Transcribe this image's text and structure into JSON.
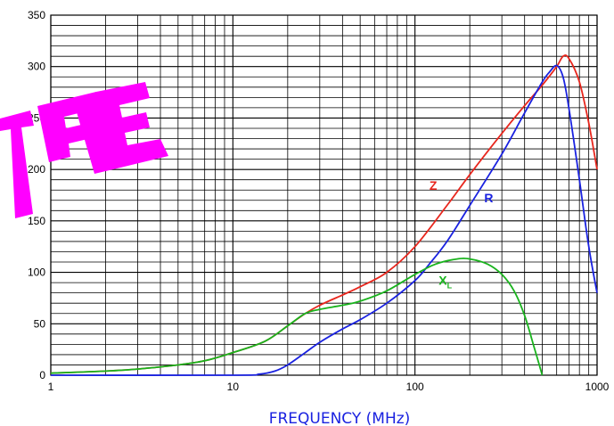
{
  "chart_data": {
    "type": "line",
    "title": "",
    "xlabel": "FREQUENCY (MHz)",
    "ylabel": "",
    "x_scale": "log",
    "xlim": [
      1,
      1000
    ],
    "ylim": [
      0,
      350
    ],
    "x_ticks": [
      "1",
      "10",
      "100",
      "1000"
    ],
    "y_ticks": [
      "0",
      "50",
      "100",
      "150",
      "200",
      "250",
      "300",
      "350"
    ],
    "grid": true,
    "legend": "inline labels",
    "series": [
      {
        "name": "Z",
        "color": "#e8261d",
        "label_at": [
          120,
          180
        ],
        "points": [
          [
            1,
            2
          ],
          [
            2,
            4
          ],
          [
            3,
            6
          ],
          [
            5,
            10
          ],
          [
            7,
            14
          ],
          [
            10,
            22
          ],
          [
            15,
            33
          ],
          [
            20,
            48
          ],
          [
            25,
            60
          ],
          [
            30,
            68
          ],
          [
            40,
            78
          ],
          [
            50,
            86
          ],
          [
            70,
            100
          ],
          [
            100,
            125
          ],
          [
            150,
            165
          ],
          [
            200,
            195
          ],
          [
            300,
            235
          ],
          [
            400,
            262
          ],
          [
            500,
            282
          ],
          [
            600,
            300
          ],
          [
            650,
            310
          ],
          [
            700,
            308
          ],
          [
            800,
            285
          ],
          [
            900,
            245
          ],
          [
            1000,
            200
          ]
        ]
      },
      {
        "name": "R",
        "color": "#1a22e0",
        "label_at": [
          240,
          168
        ],
        "points": [
          [
            1,
            0
          ],
          [
            10,
            0
          ],
          [
            14,
            1
          ],
          [
            17,
            4
          ],
          [
            20,
            10
          ],
          [
            25,
            22
          ],
          [
            30,
            32
          ],
          [
            40,
            45
          ],
          [
            50,
            54
          ],
          [
            70,
            70
          ],
          [
            100,
            92
          ],
          [
            120,
            108
          ],
          [
            150,
            130
          ],
          [
            200,
            165
          ],
          [
            300,
            215
          ],
          [
            400,
            255
          ],
          [
            500,
            285
          ],
          [
            550,
            295
          ],
          [
            600,
            301
          ],
          [
            650,
            290
          ],
          [
            700,
            260
          ],
          [
            800,
            190
          ],
          [
            900,
            125
          ],
          [
            1000,
            80
          ]
        ]
      },
      {
        "name": "X",
        "name_sub": "L",
        "color": "#19b31d",
        "label_at": [
          135,
          88
        ],
        "points": [
          [
            1,
            2
          ],
          [
            2,
            4
          ],
          [
            3,
            6
          ],
          [
            5,
            10
          ],
          [
            7,
            14
          ],
          [
            10,
            22
          ],
          [
            15,
            33
          ],
          [
            20,
            48
          ],
          [
            25,
            60
          ],
          [
            30,
            64
          ],
          [
            40,
            68
          ],
          [
            50,
            72
          ],
          [
            70,
            82
          ],
          [
            100,
            98
          ],
          [
            130,
            108
          ],
          [
            170,
            113
          ],
          [
            200,
            113
          ],
          [
            250,
            108
          ],
          [
            300,
            98
          ],
          [
            350,
            82
          ],
          [
            400,
            58
          ],
          [
            450,
            28
          ],
          [
            500,
            0
          ]
        ]
      }
    ]
  }
}
